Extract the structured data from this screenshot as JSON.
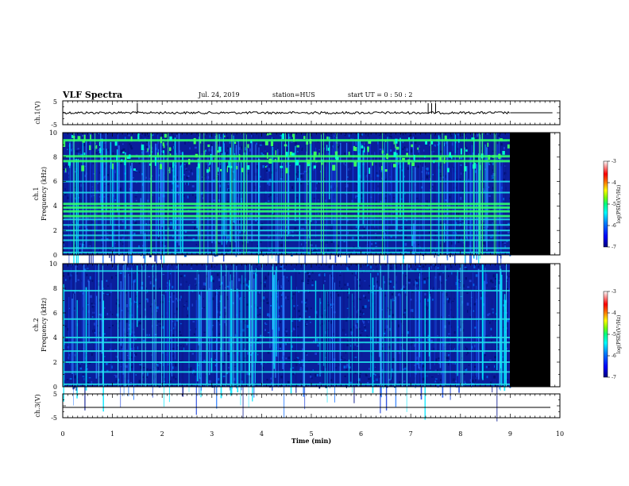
{
  "header": {
    "title": "VLF Spectra",
    "date": "Jul. 24, 2019",
    "station": "station=HUS",
    "start": "start  UT =   0 : 50 : 2"
  },
  "chart_data": [
    {
      "type": "line",
      "name": "ch1-waveform",
      "ylabel": "ch.1(V)",
      "ylim": [
        -5,
        5
      ],
      "yticks": [
        "5",
        "-5"
      ],
      "x": [
        0,
        9.0,
        9.0,
        9.85
      ],
      "baseline_value": 0,
      "data_end_min": 9.0,
      "spikes_min": [
        1.5,
        7.35,
        7.42,
        7.5
      ]
    },
    {
      "type": "heatmap",
      "name": "ch1-spectrogram",
      "ylabel_line1": "ch.1",
      "ylabel_line2": "Frequency (kHz)",
      "ylim": [
        0,
        10
      ],
      "yticks": [
        "0",
        "2",
        "4",
        "6",
        "8",
        "10"
      ],
      "data_end_min": 9.0,
      "bright_bands_khz": [
        0.2,
        0.55,
        1.2,
        1.6,
        2.0,
        2.45,
        2.9,
        3.2,
        3.6,
        3.9,
        4.2,
        5.1,
        6.0,
        7.7,
        8.1,
        9.4
      ],
      "colorbar": {
        "label": "log(PSD)(V²/Hz)",
        "range": [
          -7,
          -3
        ],
        "ticks": [
          "-3",
          "-4",
          "-5",
          "-6",
          "-7"
        ],
        "colors": [
          "#000080",
          "#0000ff",
          "#0080ff",
          "#00ffff",
          "#00ff80",
          "#80ff00",
          "#ffff00",
          "#ff8000",
          "#ff0000",
          "#ffffff"
        ]
      }
    },
    {
      "type": "heatmap",
      "name": "ch2-spectrogram",
      "ylabel_line1": "ch.2",
      "ylabel_line2": "Frequency (kHz)",
      "ylim": [
        0,
        10
      ],
      "yticks": [
        "0",
        "2",
        "4",
        "6",
        "8",
        "10"
      ],
      "data_end_min": 9.0,
      "bright_bands_khz": [
        0.2,
        1.2,
        2.0,
        2.9,
        3.6,
        4.0,
        5.5,
        7.8,
        9.4
      ],
      "colorbar": {
        "label": "log(PSD)(V²/Hz)",
        "range": [
          -7,
          -3
        ],
        "ticks": [
          "-3",
          "-4",
          "-5",
          "-6",
          "-7"
        ],
        "colors": [
          "#000080",
          "#0000ff",
          "#0080ff",
          "#00ffff",
          "#00ff80",
          "#80ff00",
          "#ffff00",
          "#ff8000",
          "#ff0000",
          "#ffffff"
        ]
      }
    },
    {
      "type": "line",
      "name": "ch3-waveform",
      "ylabel": "ch.3(V)",
      "ylim": [
        -5,
        5
      ],
      "yticks": [
        "5",
        "-5"
      ],
      "baseline_value": 0,
      "xlabel": "Time (min)",
      "xlim": [
        0,
        10
      ],
      "xticks": [
        "0",
        "1",
        "2",
        "3",
        "4",
        "5",
        "6",
        "7",
        "8",
        "9",
        "10"
      ]
    }
  ]
}
